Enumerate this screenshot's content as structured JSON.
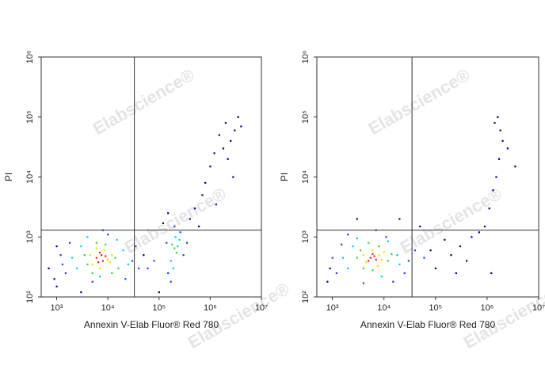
{
  "chart_data": [
    {
      "type": "scatter",
      "xlabel": "Annexin V-Elab Fluor® Red 780",
      "ylabel": "PI",
      "watermark": "Elabscience®",
      "xscale": "log",
      "yscale": "log",
      "xlim": [
        500,
        10000000
      ],
      "ylim": [
        100,
        1000000
      ],
      "xticks": [
        {
          "value": 1000,
          "label": "10³"
        },
        {
          "value": 10000,
          "label": "10⁴"
        },
        {
          "value": 100000,
          "label": "10⁵"
        },
        {
          "value": 1000000,
          "label": "10⁶"
        },
        {
          "value": 10000000,
          "label": "10⁷"
        }
      ],
      "yticks": [
        {
          "value": 100,
          "label": "10²"
        },
        {
          "value": 1000,
          "label": "10³"
        },
        {
          "value": 10000,
          "label": "10⁴"
        },
        {
          "value": 100000,
          "label": "10⁵"
        },
        {
          "value": 1000000,
          "label": "10⁶"
        }
      ],
      "gates": {
        "x": 33000,
        "y": 1300
      },
      "series": [
        {
          "color": "#00008b",
          "x": [
            900,
            1000,
            50000,
            120000,
            400000,
            500000,
            700000,
            800000,
            1000000,
            1200000,
            1500000,
            2000000,
            2500000,
            3000000,
            1800000,
            3500000,
            1000,
            700,
            3000,
            100000,
            600000,
            2200000,
            4000000,
            1300000,
            150000,
            2800000
          ],
          "values": [
            200,
            700,
            500,
            1700,
            2000,
            3000,
            5000,
            8000,
            15000,
            25000,
            50000,
            80000,
            40000,
            60000,
            30000,
            100000,
            150,
            300,
            120,
            120,
            1500,
            20000,
            70000,
            3500,
            2500,
            10000
          ]
        },
        {
          "color": "#1f3fff",
          "x": [
            1500,
            30000,
            1800,
            35000,
            5000,
            10000,
            1200,
            40000,
            60000,
            80000,
            150000,
            300000,
            140000,
            260000,
            170000,
            1300,
            22000,
            8000,
            200000,
            350000
          ],
          "values": [
            250,
            400,
            800,
            700,
            180,
            1100,
            500,
            300,
            300,
            400,
            250,
            500,
            800,
            1200,
            180,
            350,
            200,
            1300,
            1500,
            800
          ]
        },
        {
          "color": "#00c8e6",
          "x": [
            2500,
            20000,
            3000,
            7000,
            2000,
            25000,
            15000,
            4000,
            170000,
            250000,
            190000,
            230000,
            210000
          ],
          "values": [
            300,
            600,
            700,
            220,
            450,
            350,
            900,
            1000,
            400,
            900,
            300,
            700,
            1000
          ]
        },
        {
          "color": "#3cd23c",
          "x": [
            3500,
            14000,
            5000,
            9000,
            4000,
            16000,
            6000,
            12000,
            200000,
            220000,
            180000
          ],
          "values": [
            500,
            450,
            250,
            750,
            350,
            300,
            800,
            250,
            650,
            550,
            750
          ]
        },
        {
          "color": "#f0e000",
          "x": [
            5000,
            10000,
            8500,
            4500,
            11000,
            6000,
            7000,
            12000
          ],
          "values": [
            350,
            420,
            600,
            500,
            380,
            650,
            300,
            500
          ]
        },
        {
          "color": "#e8201c",
          "x": [
            6000,
            7500,
            8000,
            6500,
            9000,
            7000
          ],
          "values": [
            450,
            500,
            400,
            380,
            480,
            550
          ]
        }
      ]
    },
    {
      "type": "scatter",
      "xlabel": "Annexin V-Elab Fluor® Red 780",
      "ylabel": "PI",
      "watermark": "Elabscience®",
      "xscale": "log",
      "yscale": "log",
      "xlim": [
        500,
        10000000
      ],
      "ylim": [
        100,
        1000000
      ],
      "xticks": [
        {
          "value": 1000,
          "label": "10³"
        },
        {
          "value": 10000,
          "label": "10⁴"
        },
        {
          "value": 100000,
          "label": "10⁵"
        },
        {
          "value": 1000000,
          "label": "10⁶"
        },
        {
          "value": 10000000,
          "label": "10⁷"
        }
      ],
      "yticks": [
        {
          "value": 100,
          "label": "10²"
        },
        {
          "value": 1000,
          "label": "10³"
        },
        {
          "value": 10000,
          "label": "10⁴"
        },
        {
          "value": 100000,
          "label": "10⁵"
        },
        {
          "value": 1000000,
          "label": "10⁶"
        }
      ],
      "gates": {
        "x": 35000,
        "y": 1300
      },
      "series": [
        {
          "color": "#00008b",
          "x": [
            900,
            800,
            80000,
            100000,
            150000,
            200000,
            300000,
            400000,
            500000,
            700000,
            900000,
            1100000,
            1300000,
            1500000,
            1700000,
            2000000,
            1400000,
            1600000,
            1800000,
            2500000,
            3500000,
            50000,
            250000,
            1200000,
            3000,
            20000
          ],
          "values": [
            300,
            180,
            600,
            300,
            900,
            500,
            700,
            400,
            1000,
            1200,
            1500,
            3000,
            6000,
            10000,
            20000,
            40000,
            80000,
            100000,
            60000,
            30000,
            15000,
            1500,
            250,
            250,
            2000,
            2000
          ]
        },
        {
          "color": "#1f3fff",
          "x": [
            1200,
            30000,
            1500,
            40000,
            4000,
            11000,
            1000,
            25000,
            15000,
            2000,
            7000,
            60000
          ],
          "values": [
            250,
            400,
            750,
            600,
            170,
            1000,
            450,
            250,
            180,
            1100,
            1300,
            450
          ]
        },
        {
          "color": "#00c8e6",
          "x": [
            2000,
            18000,
            2500,
            9000,
            1600,
            20000,
            12000,
            3000
          ],
          "values": [
            300,
            500,
            700,
            220,
            450,
            350,
            850,
            950
          ]
        },
        {
          "color": "#3cd23c",
          "x": [
            3000,
            12000,
            4000,
            8000,
            3500,
            14000,
            6000,
            5000
          ],
          "values": [
            450,
            400,
            300,
            700,
            600,
            520,
            280,
            800
          ]
        },
        {
          "color": "#f0e000",
          "x": [
            4500,
            8000,
            9000,
            6000,
            4000,
            7500,
            10000
          ],
          "values": [
            380,
            500,
            420,
            600,
            500,
            330,
            560
          ]
        },
        {
          "color": "#e8201c",
          "x": [
            5500,
            6500,
            7000,
            6000,
            5000
          ],
          "values": [
            450,
            480,
            420,
            520,
            400
          ]
        }
      ]
    }
  ]
}
